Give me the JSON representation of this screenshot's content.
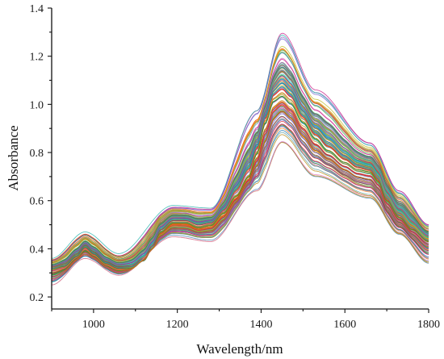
{
  "chart_data": {
    "type": "line",
    "xlabel": "Wavelength/nm",
    "ylabel": "Absorbance",
    "xlim": [
      900,
      1800
    ],
    "ylim": [
      0.15,
      1.4
    ],
    "x_ticks": [
      1000,
      1200,
      1400,
      1600,
      1800
    ],
    "x_tick_labels": [
      "1000",
      "1200",
      "1400",
      "1600",
      "1800"
    ],
    "y_ticks": [
      0.2,
      0.4,
      0.6,
      0.8,
      1.0,
      1.2,
      1.4
    ],
    "y_tick_labels": [
      "0.2",
      "0.4",
      "0.6",
      "0.8",
      "1.0",
      "1.2",
      "1.4"
    ],
    "grid": false,
    "legend": "none",
    "n_spectra": 120,
    "mean_spectrum": {
      "x": [
        900,
        930,
        960,
        980,
        1000,
        1030,
        1060,
        1090,
        1120,
        1140,
        1160,
        1190,
        1220,
        1250,
        1280,
        1310,
        1340,
        1370,
        1390,
        1410,
        1430,
        1450,
        1470,
        1500,
        1530,
        1560,
        1600,
        1630,
        1660,
        1680,
        1700,
        1730,
        1760,
        1800
      ],
      "y": [
        0.32,
        0.33,
        0.37,
        0.41,
        0.38,
        0.34,
        0.32,
        0.32,
        0.35,
        0.4,
        0.47,
        0.51,
        0.51,
        0.49,
        0.5,
        0.55,
        0.62,
        0.7,
        0.8,
        0.93,
        1.02,
        1.04,
        1.01,
        0.93,
        0.86,
        0.81,
        0.76,
        0.73,
        0.72,
        0.68,
        0.6,
        0.53,
        0.48,
        0.43
      ]
    },
    "upper_envelope": {
      "x": [
        900,
        980,
        1060,
        1190,
        1280,
        1390,
        1450,
        1530,
        1660,
        1730,
        1800
      ],
      "y": [
        0.36,
        0.47,
        0.38,
        0.58,
        0.57,
        0.98,
        1.3,
        1.06,
        0.84,
        0.64,
        0.5
      ]
    },
    "lower_envelope": {
      "x": [
        900,
        980,
        1060,
        1190,
        1280,
        1390,
        1450,
        1530,
        1660,
        1730,
        1800
      ],
      "y": [
        0.25,
        0.36,
        0.29,
        0.45,
        0.43,
        0.64,
        0.84,
        0.7,
        0.61,
        0.46,
        0.34
      ]
    },
    "palette": [
      "#1f77b4",
      "#ff7f0e",
      "#2ca02c",
      "#d62728",
      "#9467bd",
      "#8c564b",
      "#e377c2",
      "#7f7f7f",
      "#bcbd22",
      "#17becf",
      "#6a5acd",
      "#3cb371",
      "#ff4500",
      "#4682b4",
      "#daa520",
      "#20b2aa",
      "#c71585",
      "#556b2f",
      "#b8860b",
      "#5f9ea0"
    ]
  }
}
